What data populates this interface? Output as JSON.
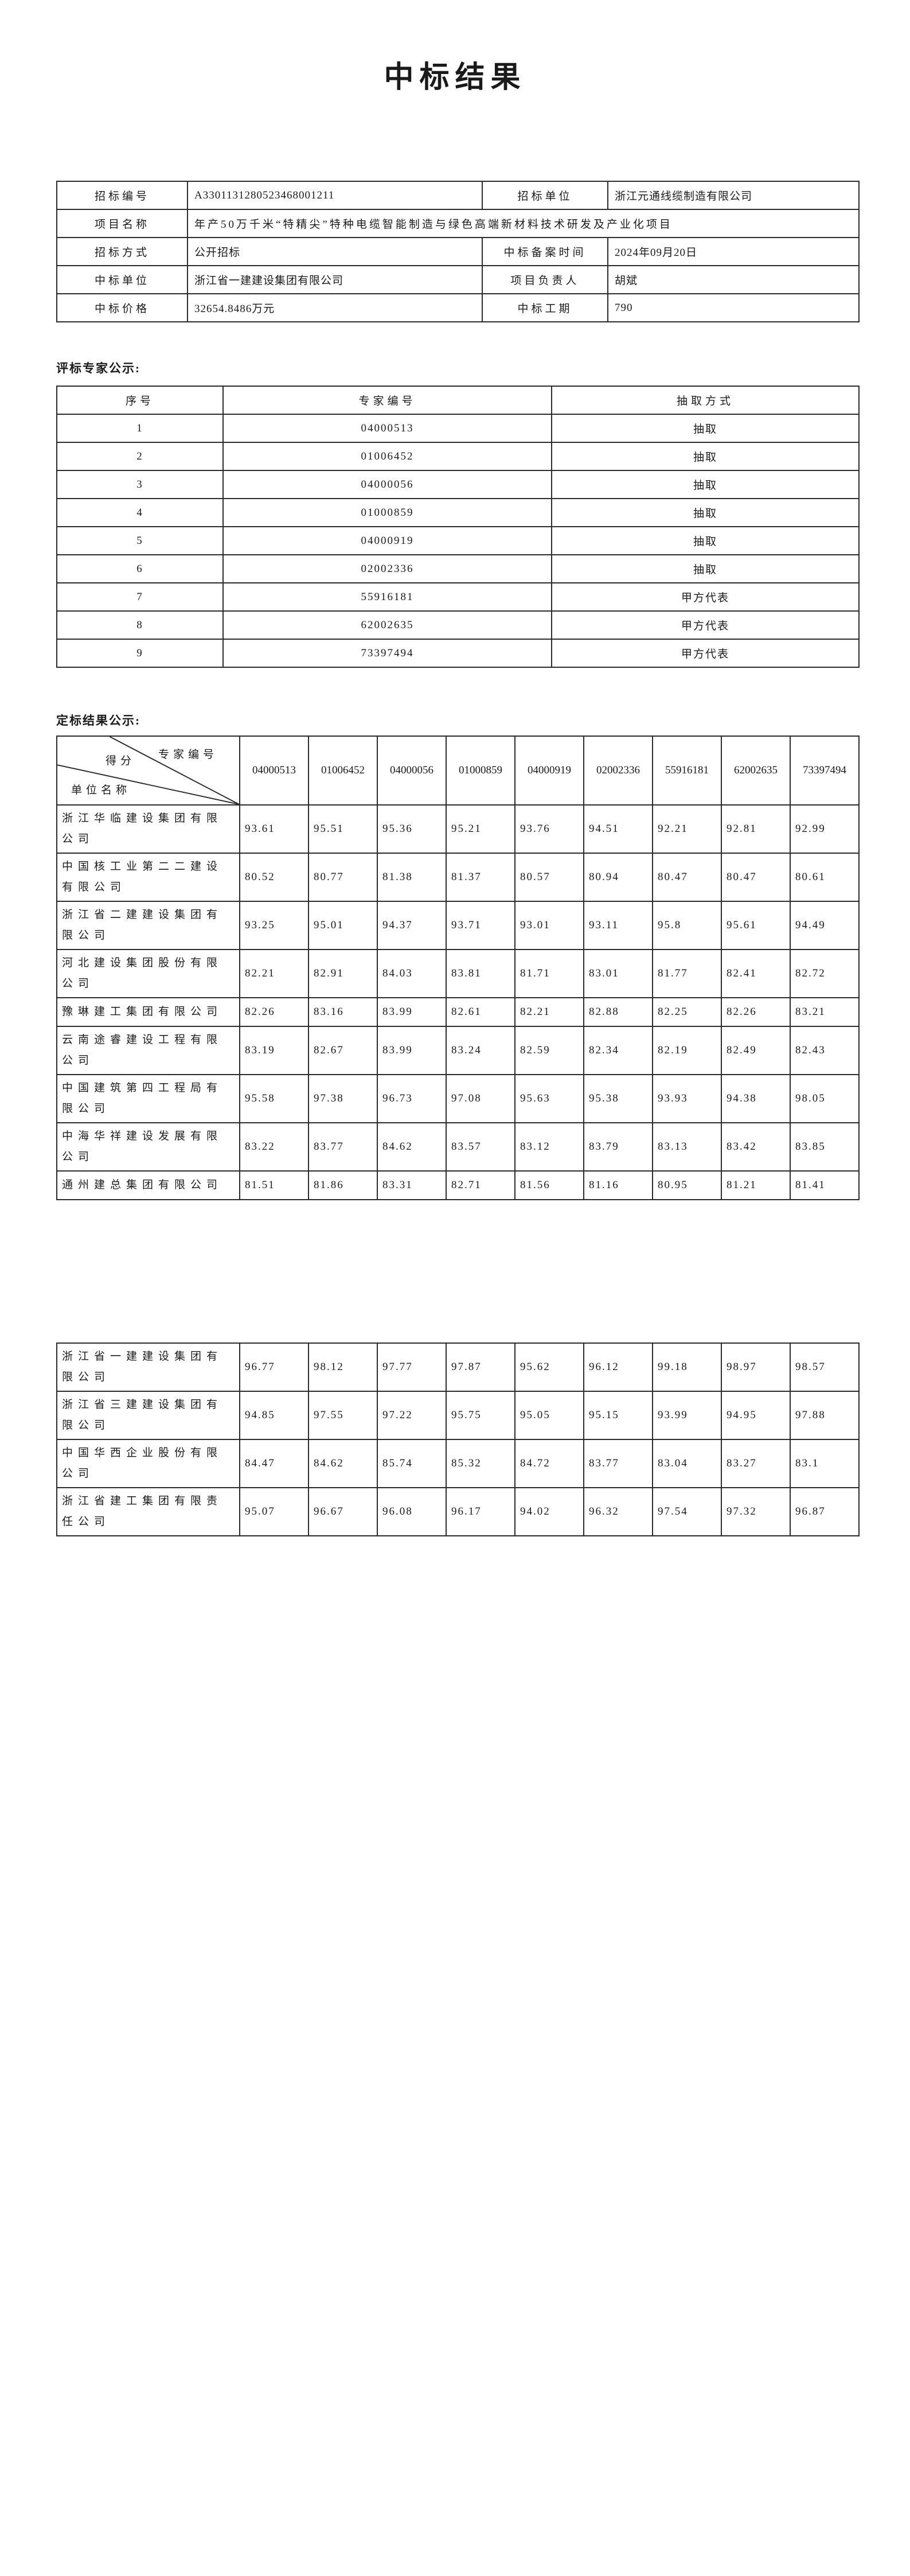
{
  "colors": {
    "background": "#ffffff",
    "text": "#1a1a1a",
    "border": "#2b2b2b"
  },
  "title": "中标结果",
  "sections": {
    "experts_heading": "评标专家公示:",
    "results_heading": "定标结果公示:"
  },
  "bid_info": {
    "rows": [
      [
        {
          "t": "招标编号",
          "k": "label"
        },
        {
          "t": "A3301131280523468001211",
          "k": "value"
        },
        {
          "t": "招标单位",
          "k": "label"
        },
        {
          "t": "浙江元通线缆制造有限公司",
          "k": "value"
        }
      ],
      [
        {
          "t": "项目名称",
          "k": "label"
        },
        {
          "t": "年产50万千米“特精尖”特种电缆智能制造与绿色高端新材料技术研发及产业化项目",
          "k": "value",
          "cls": "project",
          "colspan": 3
        }
      ],
      [
        {
          "t": "招标方式",
          "k": "label"
        },
        {
          "t": "公开招标",
          "k": "value"
        },
        {
          "t": "中标备案时间",
          "k": "label"
        },
        {
          "t": "2024年09月20日",
          "k": "value"
        }
      ],
      [
        {
          "t": "中标单位",
          "k": "label"
        },
        {
          "t": "浙江省一建建设集团有限公司",
          "k": "value"
        },
        {
          "t": "项目负责人",
          "k": "label"
        },
        {
          "t": "胡斌",
          "k": "value"
        }
      ],
      [
        {
          "t": "中标价格",
          "k": "label"
        },
        {
          "t": "32654.8486万元",
          "k": "value"
        },
        {
          "t": "中标工期",
          "k": "label"
        },
        {
          "t": "790",
          "k": "value"
        }
      ]
    ]
  },
  "expert_table": {
    "headers": [
      "序号",
      "专家编号",
      "抽取方式"
    ],
    "rows": [
      [
        "1",
        "04000513",
        "抽取"
      ],
      [
        "2",
        "01006452",
        "抽取"
      ],
      [
        "3",
        "04000056",
        "抽取"
      ],
      [
        "4",
        "01000859",
        "抽取"
      ],
      [
        "5",
        "04000919",
        "抽取"
      ],
      [
        "6",
        "02002336",
        "抽取"
      ],
      [
        "7",
        "55916181",
        "甲方代表"
      ],
      [
        "8",
        "62002635",
        "甲方代表"
      ],
      [
        "9",
        "73397494",
        "甲方代表"
      ]
    ]
  },
  "score_table": {
    "corner": {
      "top_right": "专家编号",
      "middle": "得分",
      "bottom_left": "单位名称"
    },
    "expert_ids": [
      "04000513",
      "01006452",
      "04000056",
      "01000859",
      "04000919",
      "02002336",
      "55916181",
      "62002635",
      "73397494"
    ],
    "part1_rows": [
      {
        "company": "浙江华临建设集团有限公司",
        "scores": [
          "93.61",
          "95.51",
          "95.36",
          "95.21",
          "93.76",
          "94.51",
          "92.21",
          "92.81",
          "92.99"
        ]
      },
      {
        "company": "中国核工业第二二建设有限公司",
        "scores": [
          "80.52",
          "80.77",
          "81.38",
          "81.37",
          "80.57",
          "80.94",
          "80.47",
          "80.47",
          "80.61"
        ]
      },
      {
        "company": "浙江省二建建设集团有限公司",
        "scores": [
          "93.25",
          "95.01",
          "94.37",
          "93.71",
          "93.01",
          "93.11",
          "95.8",
          "95.61",
          "94.49"
        ]
      },
      {
        "company": "河北建设集团股份有限公司",
        "scores": [
          "82.21",
          "82.91",
          "84.03",
          "83.81",
          "81.71",
          "83.01",
          "81.77",
          "82.41",
          "82.72"
        ]
      },
      {
        "company": "豫琳建工集团有限公司",
        "scores": [
          "82.26",
          "83.16",
          "83.99",
          "82.61",
          "82.21",
          "82.88",
          "82.25",
          "82.26",
          "83.21"
        ]
      },
      {
        "company": "云南途睿建设工程有限公司",
        "scores": [
          "83.19",
          "82.67",
          "83.99",
          "83.24",
          "82.59",
          "82.34",
          "82.19",
          "82.49",
          "82.43"
        ]
      },
      {
        "company": "中国建筑第四工程局有限公司",
        "scores": [
          "95.58",
          "97.38",
          "96.73",
          "97.08",
          "95.63",
          "95.38",
          "93.93",
          "94.38",
          "98.05"
        ]
      },
      {
        "company": "中海华祥建设发展有限公司",
        "scores": [
          "83.22",
          "83.77",
          "84.62",
          "83.57",
          "83.12",
          "83.79",
          "83.13",
          "83.42",
          "83.85"
        ]
      },
      {
        "company": "通州建总集团有限公司",
        "scores": [
          "81.51",
          "81.86",
          "83.31",
          "82.71",
          "81.56",
          "81.16",
          "80.95",
          "81.21",
          "81.41"
        ]
      }
    ],
    "part2_rows": [
      {
        "company": "浙江省一建建设集团有限公司",
        "scores": [
          "96.77",
          "98.12",
          "97.77",
          "97.87",
          "95.62",
          "96.12",
          "99.18",
          "98.97",
          "98.57"
        ]
      },
      {
        "company": "浙江省三建建设集团有限公司",
        "scores": [
          "94.85",
          "97.55",
          "97.22",
          "95.75",
          "95.05",
          "95.15",
          "93.99",
          "94.95",
          "97.88"
        ]
      },
      {
        "company": "中国华西企业股份有限公司",
        "scores": [
          "84.47",
          "84.62",
          "85.74",
          "85.32",
          "84.72",
          "83.77",
          "83.04",
          "83.27",
          "83.1"
        ]
      },
      {
        "company": "浙江省建工集团有限责任公司",
        "scores": [
          "95.07",
          "96.67",
          "96.08",
          "96.17",
          "94.02",
          "96.32",
          "97.54",
          "97.32",
          "96.87"
        ]
      }
    ]
  }
}
